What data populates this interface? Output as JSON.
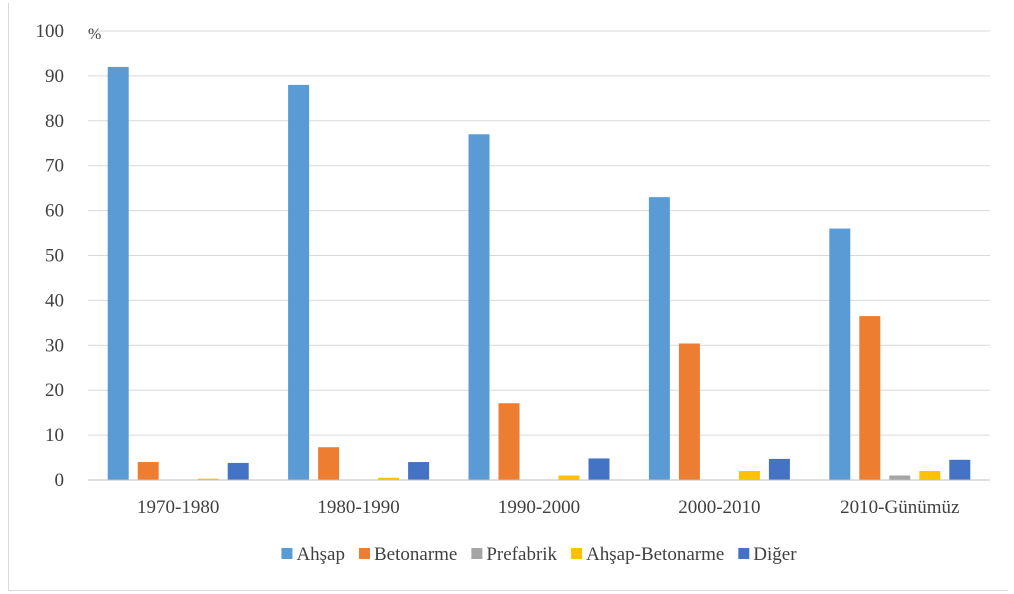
{
  "chart_data": {
    "type": "bar",
    "title": "",
    "xlabel": "",
    "ylabel": "",
    "unit_label": "%",
    "ylim": [
      0,
      100
    ],
    "ytick_step": 10,
    "grid": true,
    "legend_position": "bottom",
    "categories": [
      "1970-1980",
      "1980-1990",
      "1990-2000",
      "2000-2010",
      "2010-Günümüz"
    ],
    "series": [
      {
        "name": "Ahşap",
        "color": "#5b9bd5",
        "values": [
          92,
          88,
          77,
          63,
          56
        ]
      },
      {
        "name": "Betonarme",
        "color": "#ed7d31",
        "values": [
          4,
          7.3,
          17.1,
          30.4,
          36.5
        ]
      },
      {
        "name": "Prefabrik",
        "color": "#a5a5a5",
        "values": [
          0,
          0,
          0,
          0,
          1
        ]
      },
      {
        "name": "Ahşap-Betonarme",
        "color": "#ffc000",
        "values": [
          0.3,
          0.5,
          1,
          2,
          2
        ]
      },
      {
        "name": "Diğer",
        "color": "#4472c4",
        "values": [
          3.8,
          4,
          4.8,
          4.7,
          4.5
        ]
      }
    ]
  }
}
